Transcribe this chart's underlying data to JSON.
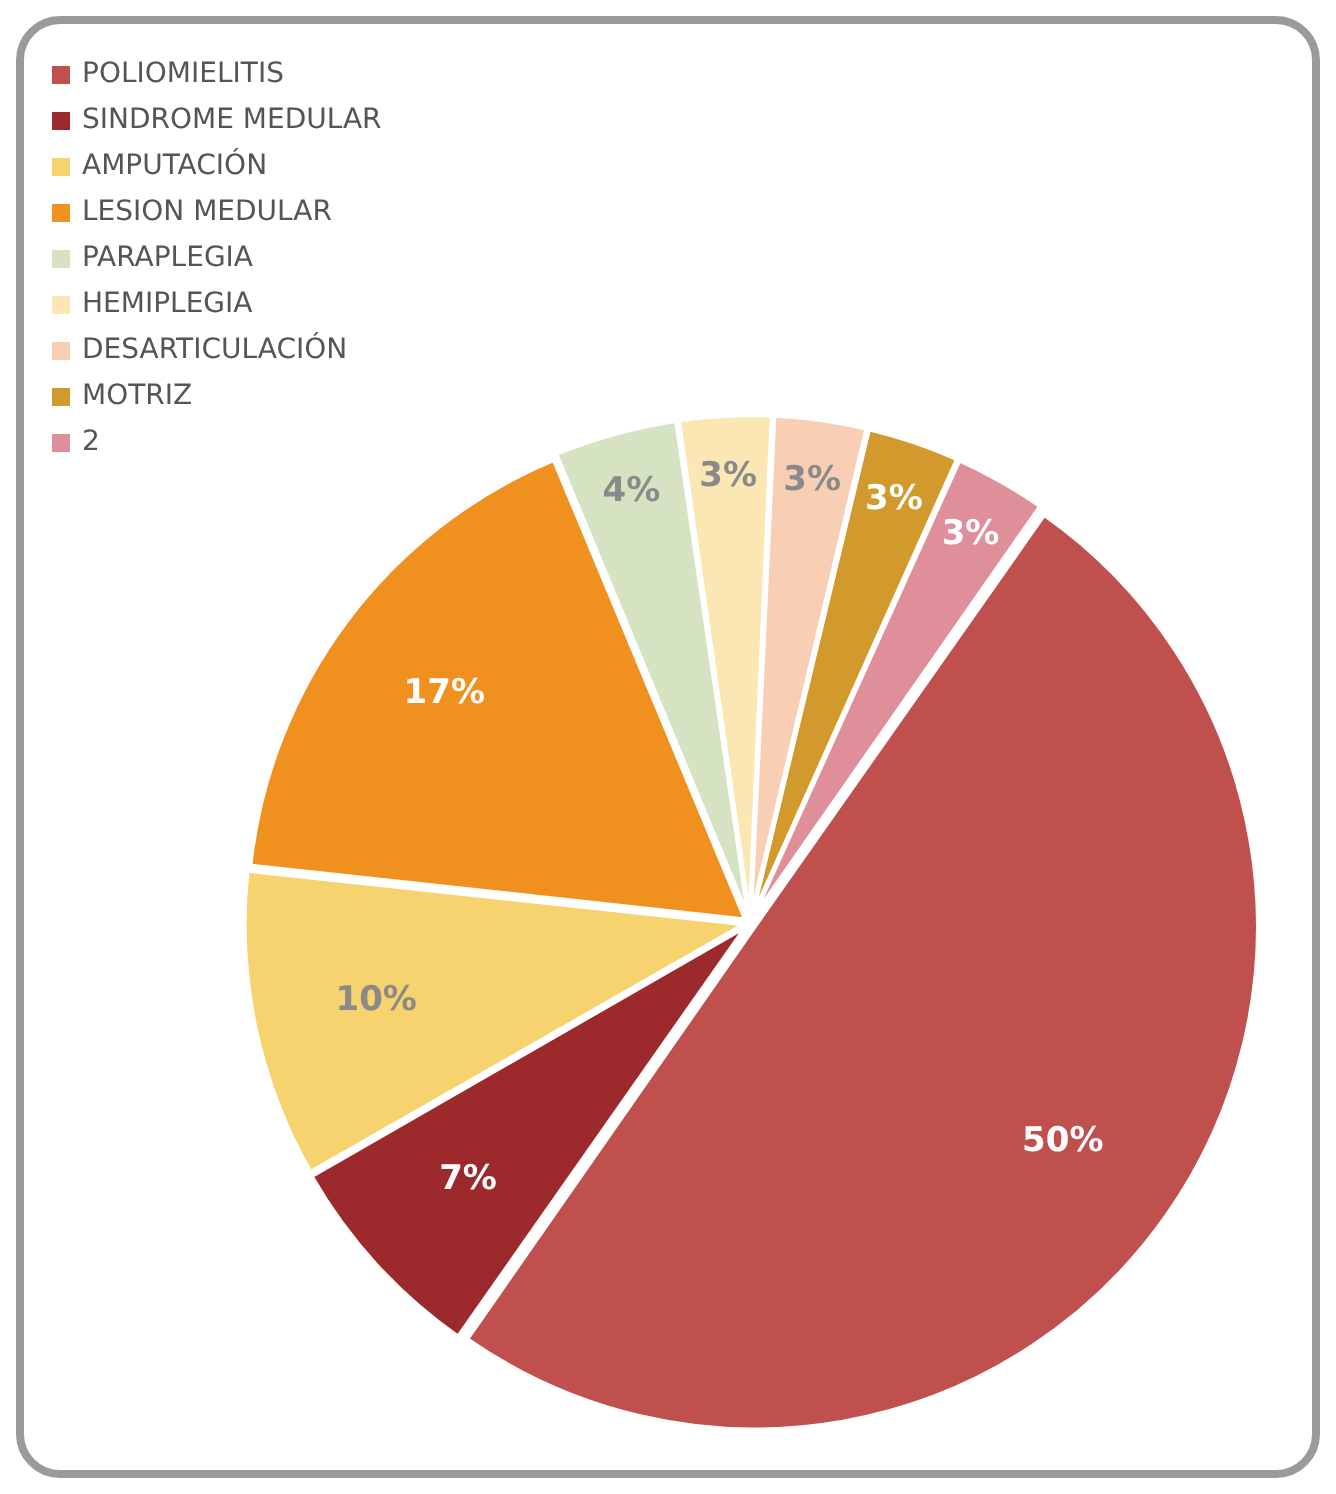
{
  "chart_data": {
    "type": "pie",
    "categories": [
      "POLIOMIELITIS",
      "SINDROME MEDULAR",
      "AMPUTACIÓN",
      "LESION MEDULAR",
      "PARAPLEGIA",
      "HEMIPLEGIA",
      "DESARTICULACIÓN",
      "MOTRIZ",
      "2"
    ],
    "values": [
      50,
      7,
      10,
      17,
      4,
      3,
      3,
      3,
      3
    ],
    "colors": [
      "#c0504d",
      "#9c2a2c",
      "#f6d36e",
      "#f0911f",
      "#d5e3c3",
      "#fbe7b3",
      "#f8cfb4",
      "#d29a2c",
      "#df8f99"
    ],
    "value_labels": [
      "50%",
      "7%",
      "10%",
      "17%",
      "4%",
      "3%",
      "3%",
      "3%",
      "3%"
    ],
    "legend": "top left"
  }
}
